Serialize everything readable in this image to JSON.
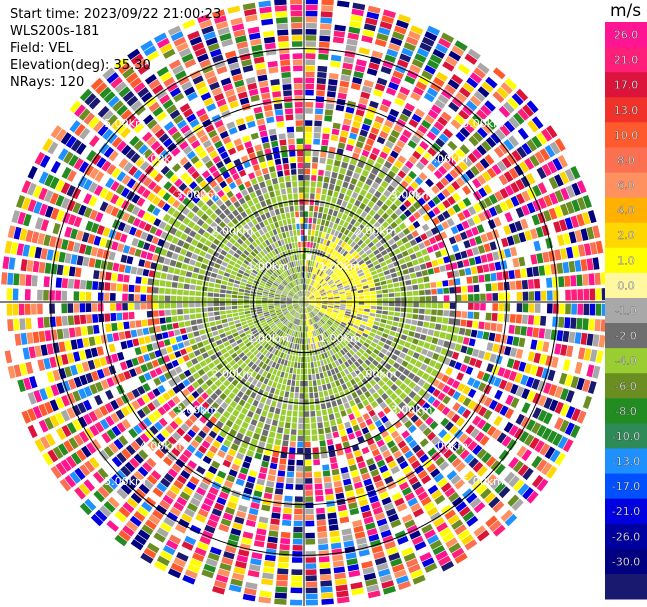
{
  "header": {
    "start_time": "Start time: 2023/09/22 21:00:23",
    "instrument": "WLS200s-181",
    "field": "Field: VEL",
    "elevation": "Elevation(deg): 35.30",
    "nrays": "NRays: 120"
  },
  "chart_data": {
    "type": "heatmap",
    "subtype": "polar-ppi",
    "field": "VEL",
    "units": "m/s",
    "n_rays": 120,
    "elevation_deg": 35.3,
    "range_max_km": 6.0,
    "range_ring_labels_km": [
      "1.00km",
      "2.00km",
      "3.00km",
      "4.00km",
      "5.00km"
    ],
    "ring_label_angles_deg": [
      45,
      135,
      225,
      315
    ],
    "colorbar": {
      "label": "m/s",
      "ticks": [
        "26.0",
        "21.0",
        "17.0",
        "13.0",
        "10.0",
        "8.0",
        "6.0",
        "4.0",
        "2.0",
        "1.0",
        "0.0",
        "-1.0",
        "-2.0",
        "-4.0",
        "-6.0",
        "-8.0",
        "-10.0",
        "-13.0",
        "-17.0",
        "-21.0",
        "-26.0",
        "-30.0"
      ],
      "colors": [
        "#ff1493",
        "#ff1e7a",
        "#dc143c",
        "#f0322a",
        "#ff5a2e",
        "#fa7050",
        "#ff9060",
        "#ffb000",
        "#ffd700",
        "#ffff00",
        "#fff8a0",
        "#a8a8a8",
        "#6e6e6e",
        "#9acd32",
        "#6b8e23",
        "#228b22",
        "#2e8b57",
        "#1e90ff",
        "#0050ff",
        "#0000e0",
        "#0000a0",
        "#000080",
        "#191970"
      ]
    }
  }
}
